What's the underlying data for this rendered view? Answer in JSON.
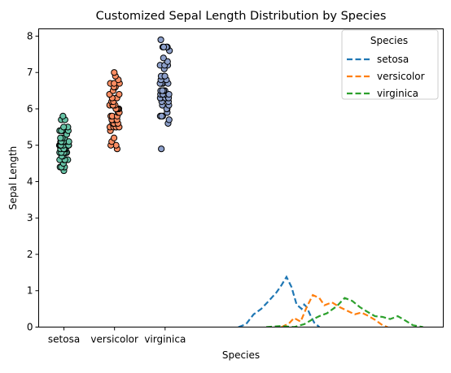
{
  "chart_data": {
    "type": "scatter",
    "title": "Customized Sepal Length Distribution by Species",
    "xlabel": "Species",
    "ylabel": "Sepal Length",
    "ylim": [
      0,
      8.2
    ],
    "yticks": [
      0,
      1,
      2,
      3,
      4,
      5,
      6,
      7,
      8
    ],
    "x_range": [
      -0.5,
      7.5
    ],
    "categories": [
      "setosa",
      "versicolor",
      "virginica"
    ],
    "grid": false,
    "legend": {
      "title": "Species",
      "placement": "top-right",
      "entries": [
        "setosa",
        "versicolor",
        "virginica"
      ]
    },
    "strip_series": [
      {
        "category": "setosa",
        "color": "#66c2a5",
        "values": [
          4.3,
          4.4,
          4.4,
          4.4,
          4.5,
          4.6,
          4.6,
          4.6,
          4.6,
          4.7,
          4.7,
          4.8,
          4.8,
          4.8,
          4.8,
          4.8,
          4.9,
          4.9,
          4.9,
          4.9,
          5.0,
          5.0,
          5.0,
          5.0,
          5.0,
          5.0,
          5.0,
          5.0,
          5.1,
          5.1,
          5.1,
          5.1,
          5.1,
          5.1,
          5.1,
          5.1,
          5.2,
          5.2,
          5.2,
          5.3,
          5.4,
          5.4,
          5.4,
          5.4,
          5.4,
          5.5,
          5.5,
          5.7,
          5.7,
          5.8
        ]
      },
      {
        "category": "versicolor",
        "color": "#fc8d62",
        "values": [
          4.9,
          5.0,
          5.0,
          5.1,
          5.2,
          5.4,
          5.5,
          5.5,
          5.5,
          5.5,
          5.5,
          5.6,
          5.6,
          5.6,
          5.6,
          5.6,
          5.7,
          5.7,
          5.7,
          5.7,
          5.7,
          5.8,
          5.8,
          5.8,
          5.9,
          5.9,
          6.0,
          6.0,
          6.0,
          6.0,
          6.1,
          6.1,
          6.1,
          6.1,
          6.2,
          6.2,
          6.3,
          6.3,
          6.3,
          6.4,
          6.4,
          6.5,
          6.6,
          6.6,
          6.7,
          6.7,
          6.7,
          6.8,
          6.9,
          7.0
        ]
      },
      {
        "category": "virginica",
        "color": "#8da0cb",
        "values": [
          4.9,
          5.6,
          5.7,
          5.8,
          5.8,
          5.8,
          5.9,
          6.0,
          6.0,
          6.1,
          6.1,
          6.2,
          6.2,
          6.3,
          6.3,
          6.3,
          6.3,
          6.3,
          6.3,
          6.4,
          6.4,
          6.4,
          6.4,
          6.5,
          6.5,
          6.5,
          6.5,
          6.7,
          6.7,
          6.7,
          6.7,
          6.7,
          6.8,
          6.8,
          6.9,
          6.9,
          6.9,
          7.1,
          7.2,
          7.2,
          7.2,
          7.3,
          7.4,
          7.6,
          7.7,
          7.7,
          7.7,
          7.7,
          7.9,
          6.4
        ]
      }
    ],
    "density_series": [
      {
        "name": "setosa",
        "color": "#1f77b4",
        "points": [
          [
            3.45,
            0.0
          ],
          [
            3.6,
            0.08
          ],
          [
            3.75,
            0.35
          ],
          [
            3.9,
            0.5
          ],
          [
            4.05,
            0.72
          ],
          [
            4.2,
            0.95
          ],
          [
            4.3,
            1.15
          ],
          [
            4.4,
            1.38
          ],
          [
            4.5,
            1.1
          ],
          [
            4.6,
            0.62
          ],
          [
            4.7,
            0.5
          ],
          [
            4.75,
            0.62
          ],
          [
            4.8,
            0.55
          ],
          [
            4.88,
            0.3
          ],
          [
            4.95,
            0.12
          ],
          [
            5.05,
            0.0
          ]
        ]
      },
      {
        "name": "versicolor",
        "color": "#ff7f0e",
        "points": [
          [
            4.3,
            0.0
          ],
          [
            4.45,
            0.1
          ],
          [
            4.55,
            0.25
          ],
          [
            4.68,
            0.15
          ],
          [
            4.8,
            0.55
          ],
          [
            4.92,
            0.88
          ],
          [
            5.05,
            0.8
          ],
          [
            5.15,
            0.6
          ],
          [
            5.3,
            0.68
          ],
          [
            5.45,
            0.55
          ],
          [
            5.6,
            0.45
          ],
          [
            5.75,
            0.35
          ],
          [
            5.88,
            0.4
          ],
          [
            6.0,
            0.32
          ],
          [
            6.15,
            0.2
          ],
          [
            6.3,
            0.05
          ],
          [
            6.4,
            0.0
          ]
        ]
      },
      {
        "name": "virginica",
        "color": "#2ca02c",
        "points": [
          [
            4.0,
            0.0
          ],
          [
            4.3,
            0.03
          ],
          [
            4.55,
            0.0
          ],
          [
            4.75,
            0.08
          ],
          [
            4.9,
            0.2
          ],
          [
            5.05,
            0.3
          ],
          [
            5.2,
            0.38
          ],
          [
            5.4,
            0.58
          ],
          [
            5.55,
            0.8
          ],
          [
            5.7,
            0.72
          ],
          [
            5.85,
            0.55
          ],
          [
            6.0,
            0.42
          ],
          [
            6.15,
            0.3
          ],
          [
            6.3,
            0.28
          ],
          [
            6.45,
            0.22
          ],
          [
            6.6,
            0.3
          ],
          [
            6.75,
            0.18
          ],
          [
            6.9,
            0.05
          ],
          [
            7.1,
            0.0
          ]
        ]
      }
    ]
  }
}
